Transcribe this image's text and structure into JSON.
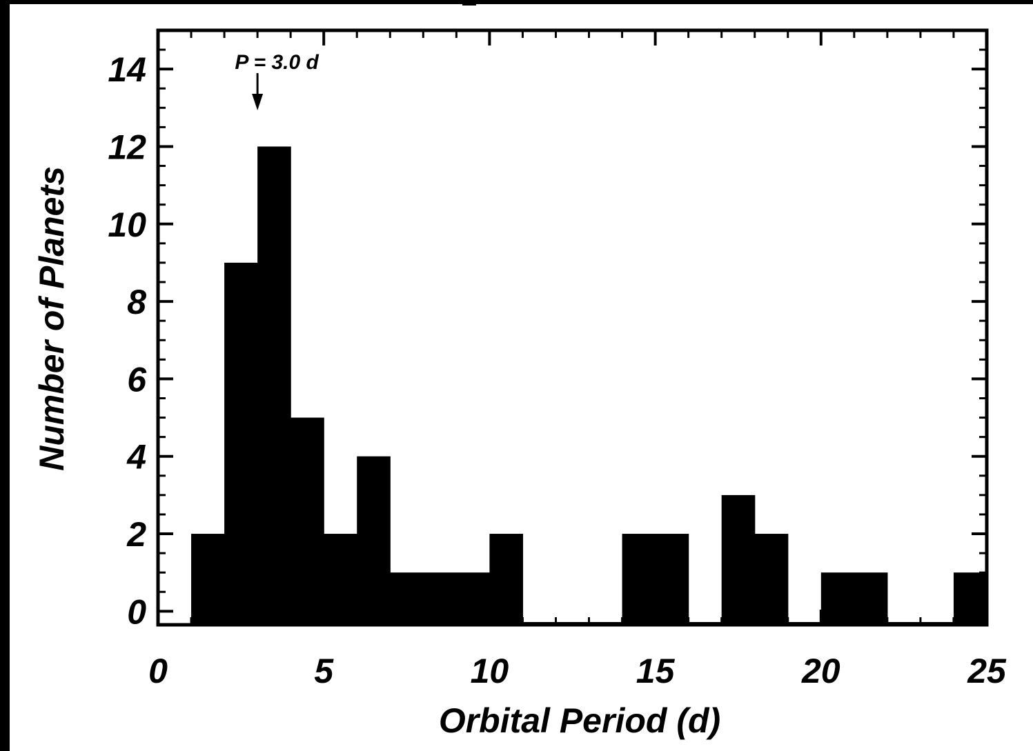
{
  "chart_data": {
    "type": "bar",
    "xlabel": "Orbital Period (d)",
    "ylabel": "Number of Planets",
    "xlim": [
      0,
      25
    ],
    "ylim": [
      -0.35,
      15
    ],
    "x_ticks": [
      0,
      5,
      10,
      15,
      20,
      25
    ],
    "x_tick_labels": [
      "0",
      "5",
      "10",
      "15",
      "20",
      "25"
    ],
    "y_ticks": [
      0,
      2,
      4,
      6,
      8,
      10,
      12,
      14
    ],
    "y_tick_labels": [
      "0",
      "2",
      "4",
      "6",
      "8",
      "10",
      "12",
      "14"
    ],
    "bin_width": 1,
    "bin_starts": [
      1,
      2,
      3,
      4,
      5,
      6,
      7,
      8,
      9,
      10,
      11,
      12,
      13,
      14,
      15,
      16,
      17,
      18,
      19,
      20,
      21,
      22,
      23,
      24
    ],
    "values": [
      2,
      9,
      12,
      5,
      2,
      4,
      1,
      1,
      1,
      2,
      0,
      0,
      0,
      2,
      2,
      0,
      3,
      2,
      0,
      1,
      1,
      0,
      0,
      1
    ],
    "bar_color": "#000000",
    "grid": false,
    "annotation": {
      "text": "P = 3.0 d",
      "x": 3.0
    }
  }
}
